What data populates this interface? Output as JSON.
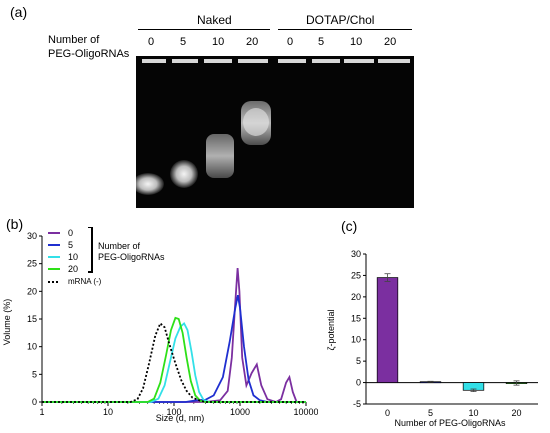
{
  "figure": {
    "panel_a": {
      "label": "(a)",
      "row_label_line1": "Number of",
      "row_label_line2": "PEG-OligoRNAs",
      "groups": [
        {
          "name": "Naked",
          "lanes": [
            "0",
            "5",
            "10",
            "20"
          ]
        },
        {
          "name": "DOTAP/Chol",
          "lanes": [
            "0",
            "5",
            "10",
            "20"
          ]
        }
      ]
    },
    "panel_b": {
      "label": "(b)",
      "legend_title_line1": "Number of",
      "legend_title_line2": "PEG-OligoRNAs",
      "legend_mrna": "mRNA (-)"
    },
    "panel_c": {
      "label": "(c)"
    }
  },
  "chart_data": [
    {
      "type": "line",
      "xlabel": "Size (d, nm)",
      "ylabel": "Volume (%)",
      "xscale": "log",
      "xlim": [
        1,
        10000
      ],
      "ylim": [
        0,
        30
      ],
      "xticks": [
        "1",
        "10",
        "100",
        "1000",
        "10000"
      ],
      "yticks": [
        "0",
        "5",
        "10",
        "15",
        "20",
        "25",
        "30"
      ],
      "legend_position": "top-left",
      "series": [
        {
          "name": "0",
          "color": "#7b2fa0",
          "style": "solid",
          "points": [
            [
              1,
              0
            ],
            [
              300,
              0
            ],
            [
              500,
              0.3
            ],
            [
              650,
              2
            ],
            [
              750,
              8
            ],
            [
              850,
              18
            ],
            [
              920,
              24.2
            ],
            [
              980,
              20
            ],
            [
              1080,
              8
            ],
            [
              1250,
              3
            ],
            [
              1500,
              5.2
            ],
            [
              1800,
              6.8
            ],
            [
              2100,
              3
            ],
            [
              2600,
              0.5
            ],
            [
              3500,
              0
            ],
            [
              4200,
              0.5
            ],
            [
              5000,
              3.5
            ],
            [
              5600,
              4.5
            ],
            [
              6300,
              1.8
            ],
            [
              7200,
              0
            ],
            [
              10000,
              0
            ]
          ]
        },
        {
          "name": "5",
          "color": "#1f2fd0",
          "style": "solid",
          "points": [
            [
              1,
              0
            ],
            [
              150,
              0
            ],
            [
              220,
              0.3
            ],
            [
              300,
              0.4
            ],
            [
              400,
              1.2
            ],
            [
              550,
              4.5
            ],
            [
              700,
              11
            ],
            [
              850,
              17
            ],
            [
              930,
              19.3
            ],
            [
              1000,
              17
            ],
            [
              1150,
              10
            ],
            [
              1350,
              4
            ],
            [
              1600,
              1.2
            ],
            [
              2000,
              0.3
            ],
            [
              2600,
              0
            ],
            [
              10000,
              0
            ]
          ]
        },
        {
          "name": "10",
          "color": "#33e0e8",
          "style": "solid",
          "points": [
            [
              1,
              0
            ],
            [
              45,
              0
            ],
            [
              58,
              0.6
            ],
            [
              72,
              3
            ],
            [
              88,
              7.5
            ],
            [
              105,
              11.5
            ],
            [
              125,
              13.6
            ],
            [
              142,
              14.2
            ],
            [
              160,
              13
            ],
            [
              185,
              9
            ],
            [
              210,
              4.8
            ],
            [
              240,
              1.8
            ],
            [
              280,
              0.4
            ],
            [
              340,
              0
            ],
            [
              10000,
              0
            ]
          ]
        },
        {
          "name": "20",
          "color": "#2ee018",
          "style": "solid",
          "points": [
            [
              1,
              0
            ],
            [
              40,
              0
            ],
            [
              50,
              0.6
            ],
            [
              62,
              3.5
            ],
            [
              76,
              8.5
            ],
            [
              90,
              13
            ],
            [
              105,
              15.2
            ],
            [
              118,
              15
            ],
            [
              135,
              12.5
            ],
            [
              155,
              8
            ],
            [
              180,
              3.8
            ],
            [
              210,
              1.2
            ],
            [
              250,
              0.2
            ],
            [
              300,
              0
            ],
            [
              10000,
              0
            ]
          ]
        },
        {
          "name": "mRNA (-)",
          "color": "#000000",
          "style": "dotted",
          "points": [
            [
              1,
              0
            ],
            [
              22,
              0
            ],
            [
              28,
              0.5
            ],
            [
              34,
              2.5
            ],
            [
              42,
              7
            ],
            [
              52,
              12
            ],
            [
              62,
              14.2
            ],
            [
              72,
              13.5
            ],
            [
              85,
              10.5
            ],
            [
              105,
              7
            ],
            [
              128,
              4
            ],
            [
              155,
              2
            ],
            [
              190,
              0.8
            ],
            [
              240,
              0.3
            ],
            [
              300,
              0
            ],
            [
              10000,
              0
            ]
          ]
        }
      ]
    },
    {
      "type": "bar",
      "xlabel": "Number of PEG-OligoRNAs",
      "ylabel": "ζ-potential",
      "categories": [
        "0",
        "5",
        "10",
        "20"
      ],
      "values": [
        24.5,
        0.2,
        -1.8,
        -0.1
      ],
      "errors": [
        0.9,
        0.1,
        0.3,
        0.5
      ],
      "colors": [
        "#7b2fa0",
        "#2030c8",
        "#33e0e8",
        "#2ee018"
      ],
      "ylim": [
        -5,
        30
      ],
      "yticks": [
        "-5",
        "0",
        "5",
        "10",
        "15",
        "20",
        "25",
        "30"
      ]
    }
  ]
}
